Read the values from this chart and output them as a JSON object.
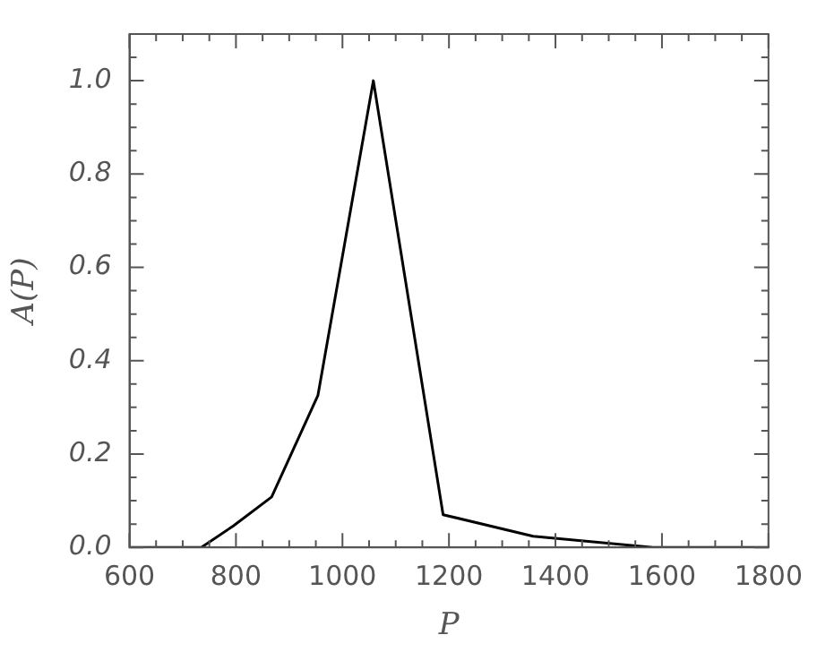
{
  "chart_data": {
    "type": "line",
    "xlabel": "P",
    "ylabel": "A(P)",
    "x": [
      600,
      735,
      795,
      867,
      954,
      1058,
      1189,
      1358,
      1583,
      1800
    ],
    "series": [
      {
        "color": "#000000",
        "values": [
          0,
          0,
          0.046,
          0.108,
          0.326,
          1.0,
          0.07,
          0.024,
          0,
          0
        ]
      }
    ],
    "xlim": [
      600,
      1800
    ],
    "xticks": [
      600,
      {
        "value": 650,
        "label": null
      },
      {
        "value": 700,
        "label": null
      },
      {
        "value": 750,
        "label": null
      },
      800,
      {
        "value": 850,
        "label": null
      },
      {
        "value": 900,
        "label": null
      },
      {
        "value": 950,
        "label": null
      },
      1000,
      {
        "value": 1050,
        "label": null
      },
      {
        "value": 1100,
        "label": null
      },
      {
        "value": 1150,
        "label": null
      },
      1200,
      {
        "value": 1250,
        "label": null
      },
      {
        "value": 1300,
        "label": null
      },
      {
        "value": 1350,
        "label": null
      },
      1400,
      {
        "value": 1450,
        "label": null
      },
      {
        "value": 1500,
        "label": null
      },
      {
        "value": 1550,
        "label": null
      },
      1600,
      {
        "value": 1650,
        "label": null
      },
      {
        "value": 1700,
        "label": null
      },
      {
        "value": 1750,
        "label": null
      },
      1800
    ],
    "ylim": [
      0,
      1.1
    ],
    "yticks": [
      {
        "value": 0,
        "label": "0.0"
      },
      {
        "value": 0.05,
        "label": null
      },
      {
        "value": 0.1,
        "label": null
      },
      {
        "value": 0.15,
        "label": null
      },
      {
        "value": 0.2,
        "label": "0.2"
      },
      {
        "value": 0.25,
        "label": null
      },
      {
        "value": 0.3,
        "label": null
      },
      {
        "value": 0.35,
        "label": null
      },
      {
        "value": 0.4,
        "label": "0.4"
      },
      {
        "value": 0.45,
        "label": null
      },
      {
        "value": 0.5,
        "label": null
      },
      {
        "value": 0.55,
        "label": null
      },
      {
        "value": 0.6,
        "label": "0.6"
      },
      {
        "value": 0.65,
        "label": null
      },
      {
        "value": 0.7,
        "label": null
      },
      {
        "value": 0.75,
        "label": null
      },
      {
        "value": 0.8,
        "label": "0.8"
      },
      {
        "value": 0.85,
        "label": null
      },
      {
        "value": 0.9,
        "label": null
      },
      {
        "value": 0.95,
        "label": null
      },
      {
        "value": 1.0,
        "label": "1.0"
      },
      {
        "value": 1.05,
        "label": null
      }
    ],
    "marker": "none",
    "line_style": "solid",
    "legend": false
  }
}
